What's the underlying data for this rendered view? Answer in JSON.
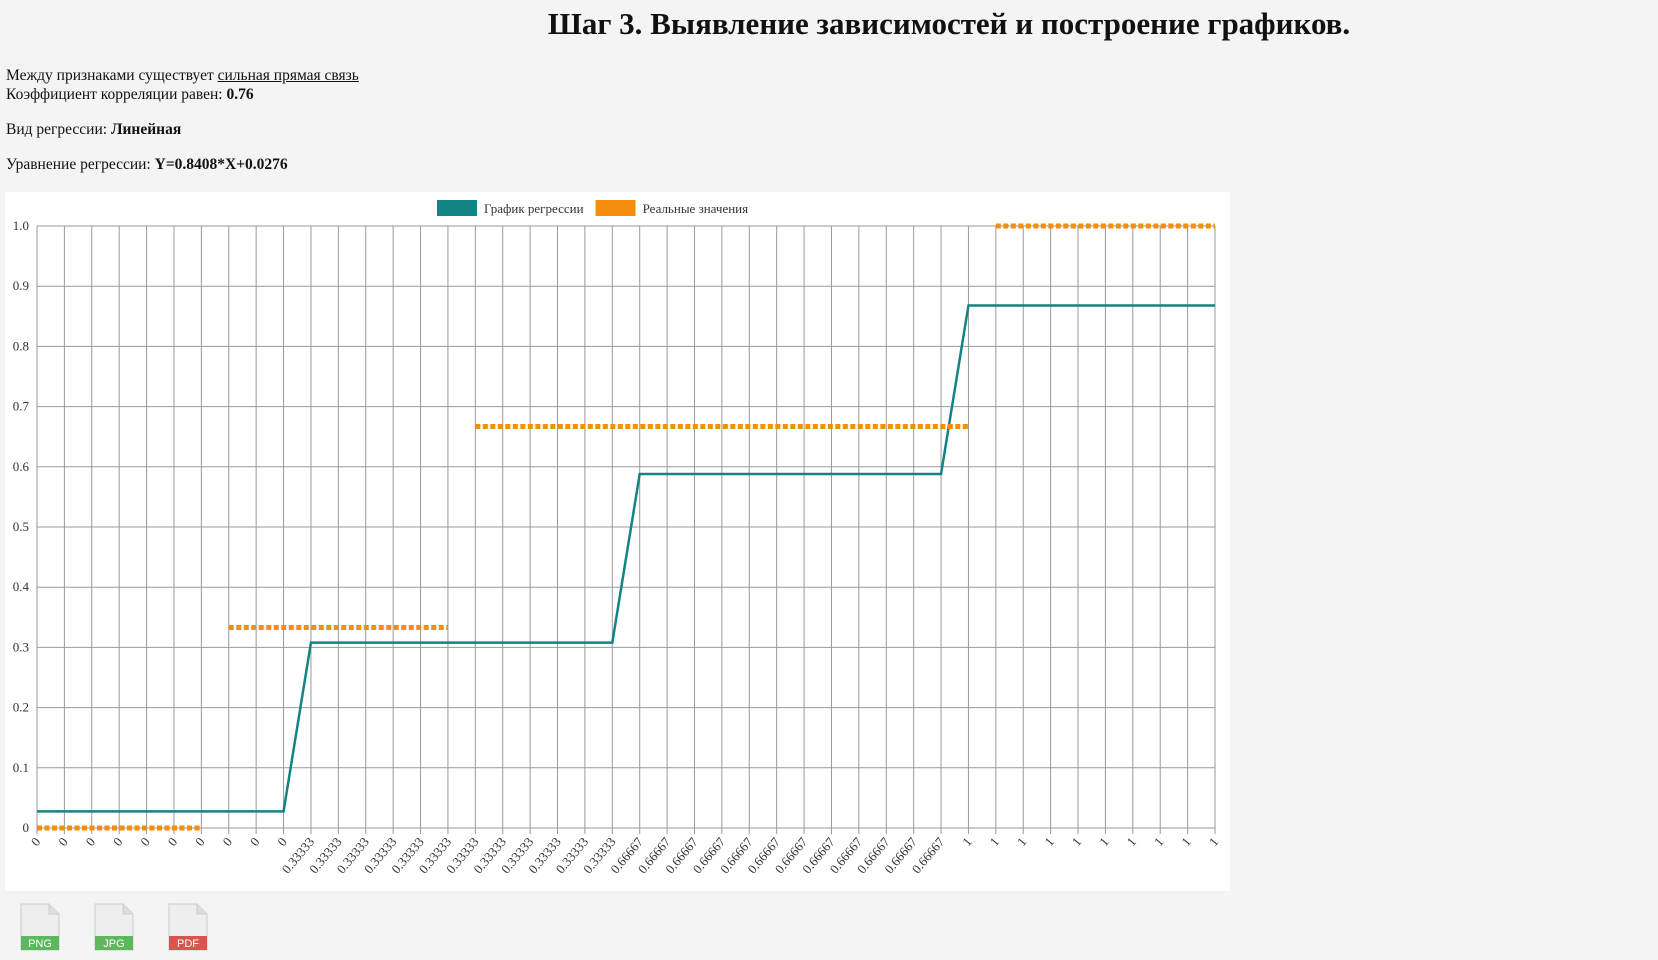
{
  "header": {
    "title": "Шаг 3. Выявление зависимостей и построение графиков."
  },
  "summary": {
    "relation_label": "Между признаками существует",
    "relation_value": "сильная прямая связь",
    "correlation_label": "Коэффициент корреляции равен:",
    "correlation_value": "0.76",
    "regression_type_label": "Вид регрессии:",
    "regression_type_value": "Линейная",
    "equation_label": "Уравнение регрессии:",
    "equation_value": "Y=0.8408*X+0.0276"
  },
  "chart_data": {
    "type": "line",
    "categories": [
      "0",
      "0",
      "0",
      "0",
      "0",
      "0",
      "0",
      "0",
      "0",
      "0",
      "0.33333",
      "0.33333",
      "0.33333",
      "0.33333",
      "0.33333",
      "0.33333",
      "0.33333",
      "0.33333",
      "0.33333",
      "0.33333",
      "0.33333",
      "0.33333",
      "0.66667",
      "0.66667",
      "0.66667",
      "0.66667",
      "0.66667",
      "0.66667",
      "0.66667",
      "0.66667",
      "0.66667",
      "0.66667",
      "0.66667",
      "0.66667",
      "1",
      "1",
      "1",
      "1",
      "1",
      "1",
      "1",
      "1",
      "1",
      "1"
    ],
    "series": [
      {
        "name": "График регрессии",
        "color": "#138483",
        "style": "solid",
        "values": [
          0.0276,
          0.0276,
          0.0276,
          0.0276,
          0.0276,
          0.0276,
          0.0276,
          0.0276,
          0.0276,
          0.0276,
          0.308,
          0.308,
          0.308,
          0.308,
          0.308,
          0.308,
          0.308,
          0.308,
          0.308,
          0.308,
          0.308,
          0.308,
          0.588,
          0.588,
          0.588,
          0.588,
          0.588,
          0.588,
          0.588,
          0.588,
          0.588,
          0.588,
          0.588,
          0.588,
          0.868,
          0.868,
          0.868,
          0.868,
          0.868,
          0.868,
          0.868,
          0.868,
          0.868,
          0.868
        ]
      },
      {
        "name": "Реальные значения",
        "color": "#f58d0d",
        "style": "dotted",
        "values": [
          0,
          0,
          0,
          0,
          0,
          0,
          0,
          0.333,
          0.333,
          0.333,
          0.333,
          0.333,
          0.333,
          0.333,
          0.333,
          0.333,
          0.667,
          0.667,
          0.667,
          0.667,
          0.667,
          0.667,
          0.667,
          0.667,
          0.667,
          0.667,
          0.667,
          0.667,
          0.667,
          0.667,
          0.667,
          0.667,
          0.667,
          0.667,
          0.667,
          1,
          1,
          1,
          1,
          1,
          1,
          1,
          1,
          1
        ]
      }
    ],
    "ylim": [
      0,
      1
    ],
    "yticks": [
      0,
      0.1,
      0.2,
      0.3,
      0.4,
      0.5,
      0.6,
      0.7,
      0.8,
      0.9,
      {
        "value": 1,
        "label": "1.0"
      }
    ],
    "grid": true,
    "legend": "top"
  },
  "downloads": [
    {
      "label": "PNG",
      "color": "#5cb85c"
    },
    {
      "label": "JPG",
      "color": "#5cb85c"
    },
    {
      "label": "PDF",
      "color": "#d9534f"
    }
  ]
}
